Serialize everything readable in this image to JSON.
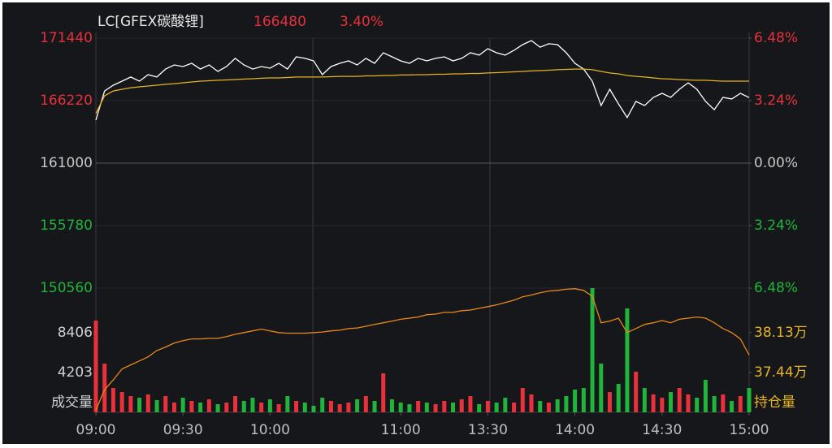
{
  "chart_data": [
    {
      "type": "line",
      "title": "LC[GFEX碳酸锂]",
      "last_price": 166480,
      "change": "3.40%",
      "xlim": [
        0,
        225
      ],
      "x": [
        0,
        3,
        6,
        9,
        12,
        15,
        18,
        21,
        24,
        27,
        30,
        33,
        36,
        39,
        42,
        45,
        48,
        51,
        54,
        57,
        60,
        63,
        66,
        69,
        72,
        75,
        78,
        81,
        84,
        87,
        90,
        93,
        96,
        99,
        102,
        105,
        108,
        111,
        114,
        117,
        120,
        123,
        126,
        129,
        132,
        135,
        138,
        141,
        144,
        147,
        150,
        153,
        156,
        159,
        162,
        165,
        168,
        171,
        174,
        177,
        180,
        183,
        186,
        189,
        192,
        195,
        198,
        201,
        204,
        207,
        210,
        213,
        216,
        219,
        222,
        225
      ],
      "series": [
        {
          "color": "#ffffff",
          "values": [
            164590,
            167030,
            167510,
            167850,
            168190,
            167850,
            168390,
            168190,
            168860,
            169200,
            169070,
            169340,
            168860,
            169200,
            168660,
            169070,
            169750,
            169200,
            168860,
            169070,
            168930,
            169340,
            168860,
            169880,
            169750,
            169540,
            168390,
            169070,
            169340,
            169540,
            169200,
            169750,
            169340,
            170220,
            169880,
            169540,
            169340,
            169750,
            169540,
            169750,
            169880,
            169540,
            169750,
            170220,
            170020,
            170560,
            170220,
            170020,
            170420,
            170900,
            171240,
            170690,
            170970,
            170900,
            170220,
            169340,
            168860,
            167850,
            165810,
            167170,
            165950,
            164800,
            166150,
            165810,
            166490,
            166830,
            166490,
            167170,
            167710,
            167170,
            166150,
            165470,
            166490,
            166360,
            166830,
            166480
          ]
        },
        {
          "color": "#e6b422",
          "values": [
            165140,
            166630,
            167030,
            167170,
            167300,
            167370,
            167440,
            167510,
            167580,
            167640,
            167710,
            167780,
            167850,
            167880,
            167920,
            167950,
            167980,
            168020,
            168050,
            168090,
            168120,
            168120,
            168150,
            168190,
            168190,
            168190,
            168190,
            168220,
            168250,
            168250,
            168250,
            168290,
            168290,
            168320,
            168320,
            168360,
            168360,
            168390,
            168390,
            168420,
            168420,
            168460,
            168460,
            168490,
            168490,
            168530,
            168560,
            168590,
            168630,
            168660,
            168700,
            168730,
            168760,
            168800,
            168830,
            168860,
            168860,
            168800,
            168660,
            168530,
            168460,
            168320,
            168250,
            168190,
            168120,
            168050,
            168020,
            167980,
            167950,
            167920,
            167920,
            167880,
            167850,
            167850,
            167850,
            167850
          ]
        }
      ],
      "ylim": [
        150560,
        171440
      ],
      "yticks": [
        171440,
        166220,
        161000,
        155780,
        150560
      ],
      "y2lim": [
        -6.48,
        6.48
      ],
      "y2ticks": [
        {
          "value": 6.48,
          "label": "6.48%"
        },
        {
          "value": 3.24,
          "label": "3.24%"
        },
        {
          "value": 0,
          "label": "0.00%"
        },
        {
          "value": -3.24,
          "label": "3.24%"
        },
        {
          "value": -6.48,
          "label": "6.48%"
        }
      ],
      "up_color": "#e8313a",
      "down_color": "#1fb53a",
      "flat_color": "#c8c8c8",
      "grid": true
    },
    {
      "type": "bar",
      "ylabel": "成交量",
      "y2label": "持仓量",
      "xlim": [
        0,
        225
      ],
      "x": [
        0,
        3,
        6,
        9,
        12,
        15,
        18,
        21,
        24,
        27,
        30,
        33,
        36,
        39,
        42,
        45,
        48,
        51,
        54,
        57,
        60,
        63,
        66,
        69,
        72,
        75,
        78,
        81,
        84,
        87,
        90,
        93,
        96,
        99,
        102,
        105,
        108,
        111,
        114,
        117,
        120,
        123,
        126,
        129,
        132,
        135,
        138,
        141,
        144,
        147,
        150,
        153,
        156,
        159,
        162,
        165,
        168,
        171,
        174,
        177,
        180,
        183,
        186,
        189,
        192,
        195,
        198,
        201,
        204,
        207,
        210,
        213,
        216,
        219,
        222,
        225
      ],
      "xticks": [
        {
          "value": 0,
          "label": "09:00"
        },
        {
          "value": 30,
          "label": "09:30"
        },
        {
          "value": 60,
          "label": "10:00"
        },
        {
          "value": 105,
          "label": "11:00"
        },
        {
          "value": 135,
          "label": "13:30"
        },
        {
          "value": 165,
          "label": "14:00"
        },
        {
          "value": 195,
          "label": "14:30"
        },
        {
          "value": 225,
          "label": "15:00"
        }
      ],
      "series": [
        {
          "type": "bar",
          "up_color": "#e8313a",
          "down_color": "#1fb53a",
          "values": [
            9690,
            5150,
            2570,
            2140,
            1720,
            1540,
            1890,
            1290,
            1720,
            1030,
            1540,
            1200,
            1030,
            1370,
            860,
            1030,
            1720,
            1200,
            1540,
            1030,
            1370,
            860,
            1720,
            1200,
            1030,
            690,
            1540,
            1200,
            860,
            1030,
            1370,
            1720,
            1200,
            4120,
            1370,
            1030,
            860,
            1200,
            1030,
            860,
            1200,
            1030,
            1370,
            1720,
            860,
            1200,
            1030,
            1540,
            1030,
            2570,
            1890,
            1200,
            1030,
            1370,
            1720,
            2400,
            2570,
            13120,
            5150,
            2140,
            3000,
            10980,
            4290,
            2570,
            1890,
            1540,
            2140,
            2570,
            1890,
            1540,
            3430,
            1720,
            1890,
            1200,
            1720,
            2570
          ]
        },
        {
          "type": "line",
          "axis": "y2",
          "color": "#e8881a",
          "values": [
            36.79,
            37.14,
            37.31,
            37.5,
            37.57,
            37.64,
            37.71,
            37.82,
            37.88,
            37.95,
            37.99,
            38.02,
            38.02,
            38.03,
            38.03,
            38.06,
            38.1,
            38.13,
            38.16,
            38.19,
            38.16,
            38.13,
            38.12,
            38.12,
            38.12,
            38.13,
            38.14,
            38.16,
            38.17,
            38.2,
            38.21,
            38.24,
            38.27,
            38.3,
            38.33,
            38.36,
            38.38,
            38.4,
            38.44,
            38.45,
            38.48,
            38.48,
            38.51,
            38.52,
            38.55,
            38.58,
            38.61,
            38.65,
            38.69,
            38.75,
            38.78,
            38.82,
            38.85,
            38.86,
            38.88,
            38.89,
            38.86,
            38.76,
            38.3,
            38.33,
            38.38,
            38.13,
            38.2,
            38.27,
            38.3,
            38.34,
            38.3,
            38.36,
            38.38,
            38.4,
            38.38,
            38.3,
            38.2,
            38.13,
            38.02,
            37.74
          ]
        }
      ],
      "ylim": [
        0,
        13124
      ],
      "yticks": [
        8406,
        4203
      ],
      "y2lim": [
        36.75,
        38.9
      ],
      "y2ticks": [
        {
          "value": 38.13,
          "label": "38.13万"
        },
        {
          "value": 37.44,
          "label": "37.44万"
        }
      ]
    }
  ]
}
